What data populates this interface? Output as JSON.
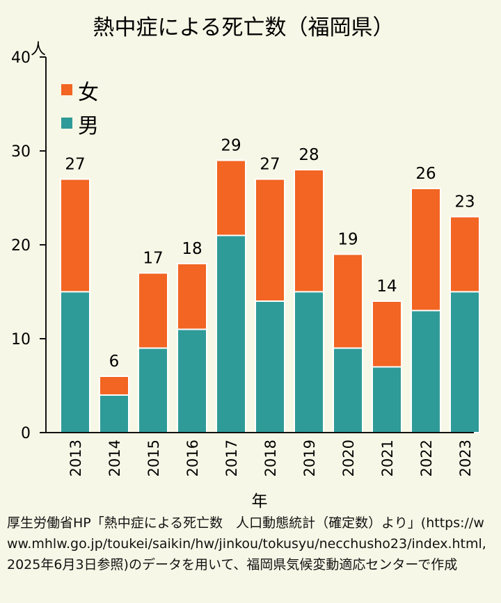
{
  "chart_data": {
    "type": "bar",
    "stacked": true,
    "title": "熱中症による死亡数（福岡県）",
    "ylabel": "人",
    "xlabel": "年",
    "ylim": [
      0,
      40
    ],
    "yticks": [
      0,
      10,
      20,
      30,
      40
    ],
    "categories": [
      "2013",
      "2014",
      "2015",
      "2016",
      "2017",
      "2018",
      "2019",
      "2020",
      "2021",
      "2022",
      "2023"
    ],
    "series": [
      {
        "name": "男",
        "color": "#2f9b98",
        "values": [
          15,
          4,
          9,
          11,
          21,
          14,
          15,
          9,
          7,
          13,
          15
        ]
      },
      {
        "name": "女",
        "color": "#f26522",
        "values": [
          12,
          2,
          8,
          7,
          8,
          13,
          13,
          10,
          7,
          13,
          8
        ]
      }
    ],
    "totals": [
      27,
      6,
      17,
      18,
      29,
      27,
      28,
      19,
      14,
      26,
      23
    ],
    "legend": {
      "placement": "top-left",
      "order": [
        "女",
        "男"
      ]
    },
    "grid": false
  },
  "source": "厚生労働省HP「熱中症による死亡数　人口動態統計（確定数）より」(https://www.mhlw.go.jp/toukei/saikin/hw/jinkou/tokusyu/necchusho23/index.html, 2025年6月3日参照)のデータを用いて、福岡県気候変動適応センターで作成"
}
